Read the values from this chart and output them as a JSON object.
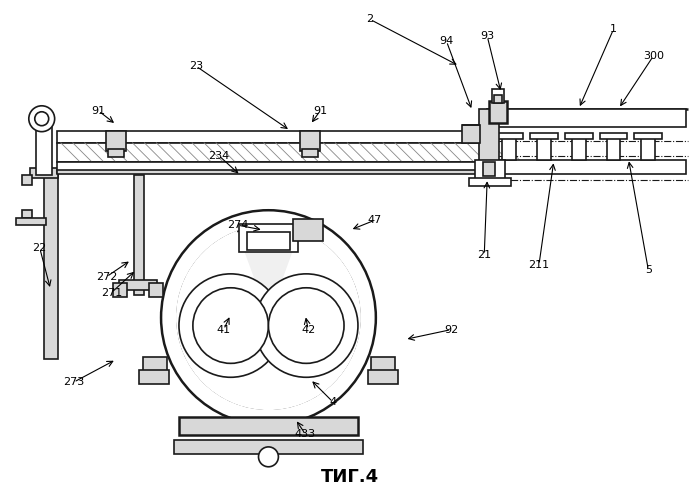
{
  "title": "ΤИГ.4",
  "bg_color": "#ffffff",
  "lc": "#1a1a1a",
  "gray_fill": "#d8d8d8",
  "light_fill": "#eeeeee",
  "hatch_fill": "#e8e8e8"
}
